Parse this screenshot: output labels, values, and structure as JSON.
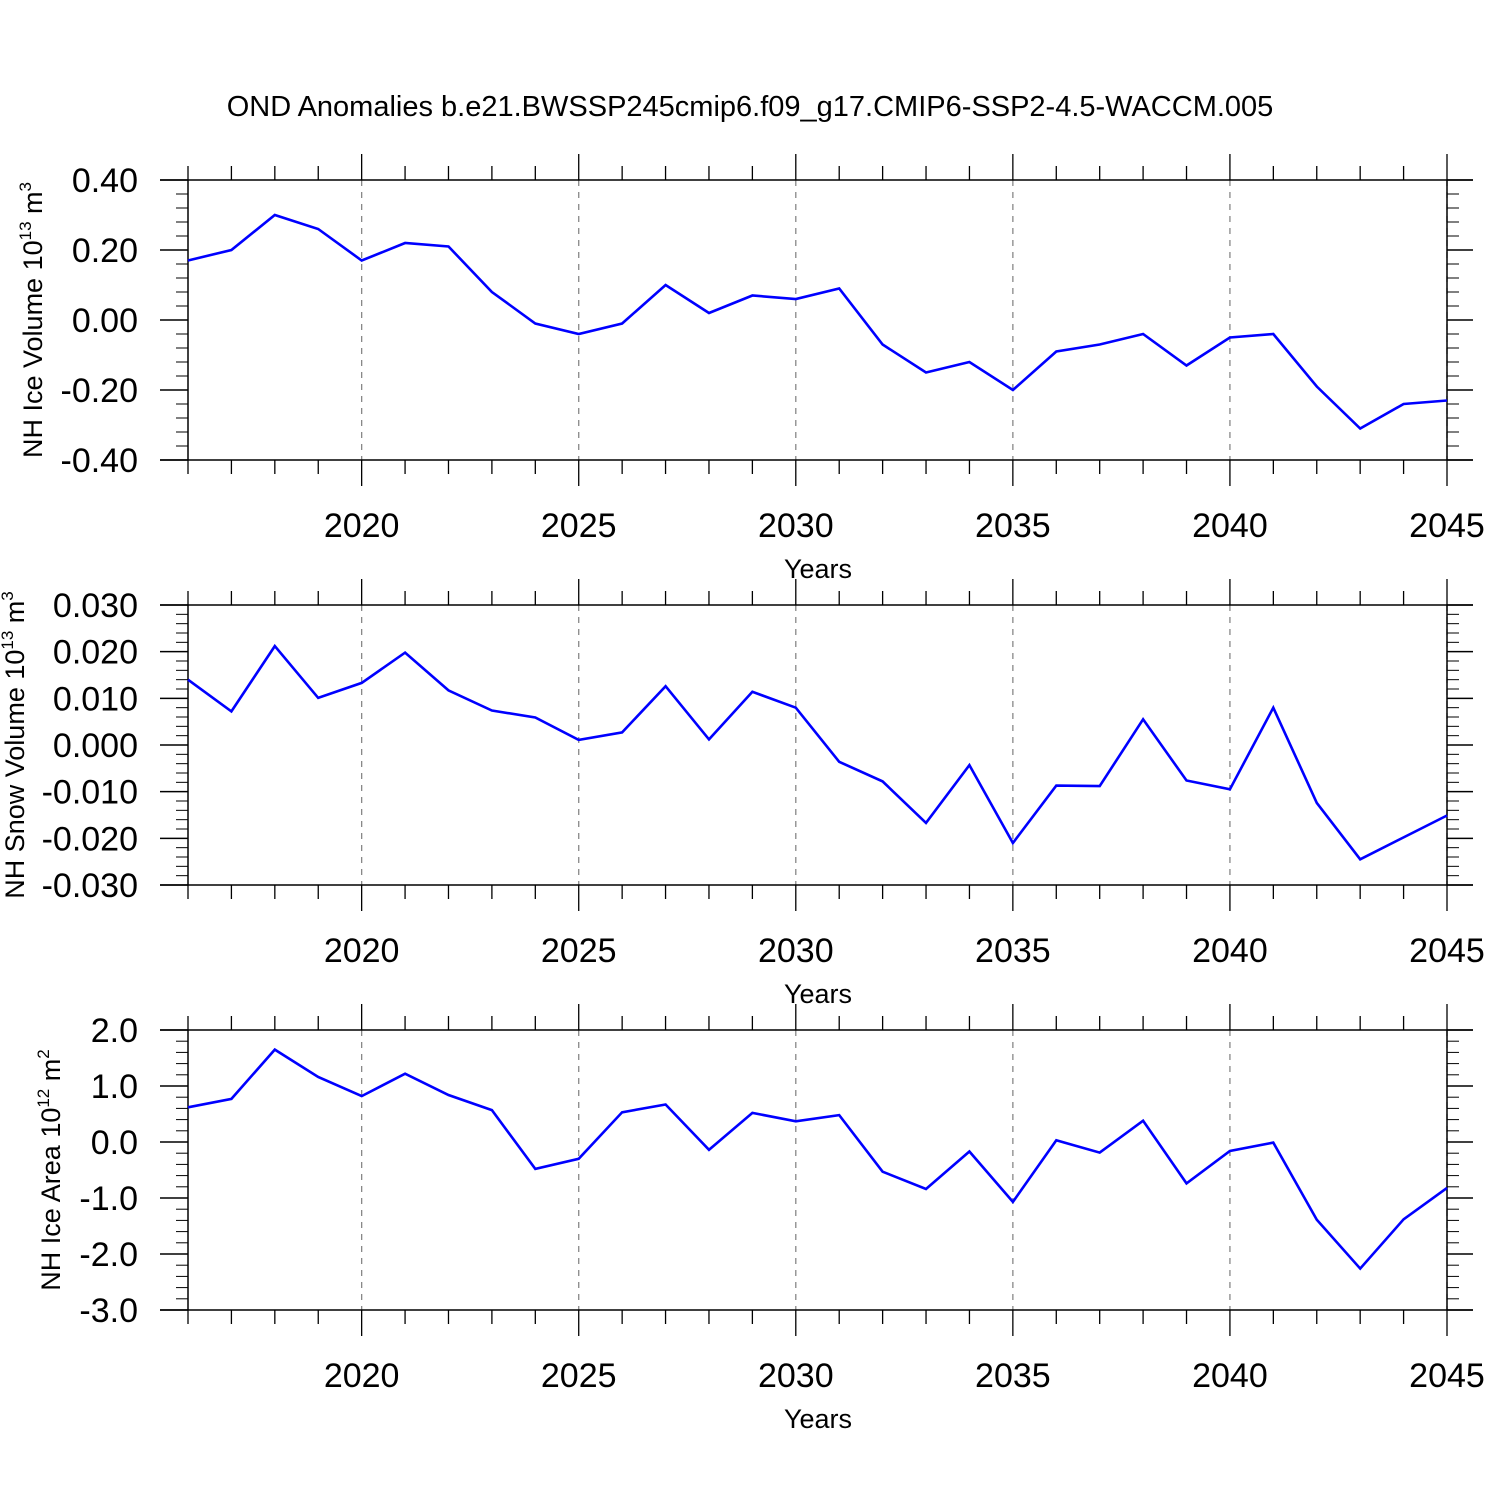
{
  "title": "OND Anomalies b.e21.BWSSP245cmip6.f09_g17.CMIP6-SSP2-4.5-WACCM.005",
  "colors": {
    "line": "#0000ff",
    "axis": "#000000",
    "grid": "#888888"
  },
  "chart_data": [
    {
      "type": "line",
      "xlabel": "Years",
      "ylabel": {
        "text": "NH Ice Volume 10",
        "exp": "13",
        "unit": " m",
        "unit_exp": "3"
      },
      "ylim": [
        -0.4,
        0.4
      ],
      "xlim": [
        2016,
        2045
      ],
      "yticks": [
        "0.40",
        "0.20",
        "0.00",
        "-0.20",
        "-0.40"
      ],
      "xticks": [
        "2020",
        "2025",
        "2030",
        "2035",
        "2040",
        "2045"
      ],
      "grid": "vertical dashed at major x ticks",
      "x": [
        2016,
        2017,
        2018,
        2019,
        2020,
        2021,
        2022,
        2023,
        2024,
        2025,
        2026,
        2027,
        2028,
        2029,
        2030,
        2031,
        2032,
        2033,
        2034,
        2035,
        2036,
        2037,
        2038,
        2039,
        2040,
        2041,
        2042,
        2043,
        2044,
        2045
      ],
      "y": [
        0.17,
        0.2,
        0.3,
        0.26,
        0.17,
        0.22,
        0.21,
        0.08,
        -0.01,
        -0.04,
        -0.01,
        0.1,
        0.02,
        0.07,
        0.06,
        0.09,
        -0.07,
        -0.15,
        -0.12,
        -0.2,
        -0.09,
        -0.07,
        -0.04,
        -0.13,
        -0.05,
        -0.04,
        -0.19,
        -0.31,
        -0.24,
        -0.23
      ]
    },
    {
      "type": "line",
      "xlabel": "Years",
      "ylabel": {
        "text": "NH Snow Volume 10",
        "exp": "13",
        "unit": " m",
        "unit_exp": "3"
      },
      "ylim": [
        -0.03,
        0.03
      ],
      "xlim": [
        2016,
        2045
      ],
      "yticks": [
        "0.030",
        "0.020",
        "0.010",
        "0.000",
        "-0.010",
        "-0.020",
        "-0.030"
      ],
      "xticks": [
        "2020",
        "2025",
        "2030",
        "2035",
        "2040",
        "2045"
      ],
      "grid": "vertical dashed at major x ticks",
      "x": [
        2016,
        2017,
        2018,
        2019,
        2020,
        2021,
        2022,
        2023,
        2024,
        2025,
        2026,
        2027,
        2028,
        2029,
        2030,
        2031,
        2032,
        2033,
        2034,
        2035,
        2036,
        2037,
        2038,
        2039,
        2040,
        2041,
        2042,
        2043,
        2044,
        2045
      ],
      "y": [
        0.014,
        0.0072,
        0.0212,
        0.0101,
        0.0133,
        0.0198,
        0.0117,
        0.0074,
        0.0059,
        0.0011,
        0.0027,
        0.0126,
        0.0012,
        0.0114,
        0.008,
        -0.0036,
        -0.0078,
        -0.0167,
        -0.0043,
        -0.021,
        -0.0087,
        -0.0088,
        0.0055,
        -0.0076,
        -0.0095,
        0.008,
        -0.0124,
        -0.0245,
        -0.0198,
        -0.0151
      ]
    },
    {
      "type": "line",
      "xlabel": "Years",
      "ylabel": {
        "text": "NH Ice Area 10",
        "exp": "12",
        "unit": " m",
        "unit_exp": "2"
      },
      "ylim": [
        -3.0,
        2.0
      ],
      "xlim": [
        2016,
        2045
      ],
      "yticks": [
        "2.0",
        "1.0",
        "0.0",
        "-1.0",
        "-2.0",
        "-3.0"
      ],
      "xticks": [
        "2020",
        "2025",
        "2030",
        "2035",
        "2040",
        "2045"
      ],
      "grid": "vertical dashed at major x ticks",
      "x": [
        2016,
        2017,
        2018,
        2019,
        2020,
        2021,
        2022,
        2023,
        2024,
        2025,
        2026,
        2027,
        2028,
        2029,
        2030,
        2031,
        2032,
        2033,
        2034,
        2035,
        2036,
        2037,
        2038,
        2039,
        2040,
        2041,
        2042,
        2043,
        2044,
        2045
      ],
      "y": [
        0.62,
        0.77,
        1.65,
        1.16,
        0.82,
        1.22,
        0.84,
        0.57,
        -0.48,
        -0.3,
        0.53,
        0.67,
        -0.14,
        0.52,
        0.37,
        0.48,
        -0.53,
        -0.84,
        -0.17,
        -1.07,
        0.03,
        -0.19,
        0.38,
        -0.74,
        -0.16,
        -0.01,
        -1.39,
        -2.26,
        -1.38,
        -0.82
      ]
    }
  ]
}
